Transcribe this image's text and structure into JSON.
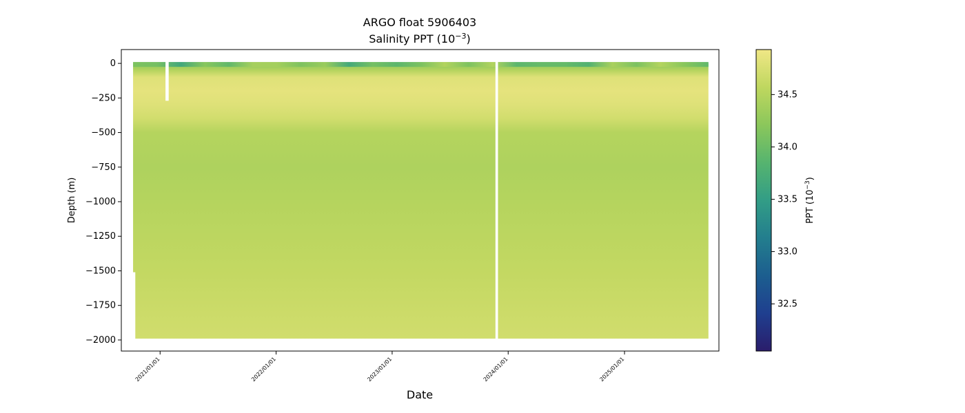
{
  "chart_data": {
    "type": "heatmap",
    "title": "ARGO float 5906403",
    "subtitle": "Salinity PPT (10",
    "subtitle_exp": "−3",
    "subtitle_end": ")",
    "xlabel": "Date",
    "ylabel": "Depth (m)",
    "xlim": [
      "2020-09-01",
      "2025-10-25"
    ],
    "ylim": [
      -2080,
      100
    ],
    "xticks": [
      "2021/01/01",
      "2022/01/01",
      "2023/01/01",
      "2024/01/01",
      "2025/01/01"
    ],
    "yticks": [
      0,
      -250,
      -500,
      -750,
      -1000,
      -1250,
      -1500,
      -1750,
      -2000
    ],
    "ytick_labels": [
      "0",
      "−250",
      "−500",
      "−750",
      "−1000",
      "−1250",
      "−1500",
      "−1750",
      "−2000"
    ],
    "data_start": "2020-10-08",
    "data_end": "2025-09-22",
    "max_depth": -1990,
    "early_max_depth": -1510,
    "early_until": "2020-10-15",
    "gaps": [
      {
        "start": "2021-01-18",
        "end": "2021-01-28",
        "depth_to": -270
      },
      {
        "start": "2023-11-22",
        "end": "2023-11-30",
        "depth_to": -1995
      }
    ],
    "profile_depths": [
      0,
      -50,
      -100,
      -200,
      -300,
      -400,
      -500,
      -750,
      -1000,
      -1500,
      -2000
    ],
    "salinity_profile": [
      34.2,
      34.5,
      34.8,
      34.85,
      34.8,
      34.7,
      34.5,
      34.45,
      34.5,
      34.6,
      34.7
    ],
    "surface_min_salinity": 33.1,
    "colorbar": {
      "label": "PPT (10",
      "label_exp": "−3",
      "label_end": ")",
      "range": [
        32.05,
        34.93
      ],
      "ticks": [
        32.5,
        33.0,
        33.5,
        34.0,
        34.5
      ],
      "tick_labels": [
        "32.5",
        "33.0",
        "33.5",
        "34.0",
        "34.5"
      ],
      "colormap": "haline",
      "colors": [
        "#2a1d6b",
        "#1f3f8f",
        "#1c5e8f",
        "#237e8e",
        "#329d86",
        "#56b46f",
        "#8bc75b",
        "#bfd75f",
        "#f0e786"
      ]
    }
  }
}
